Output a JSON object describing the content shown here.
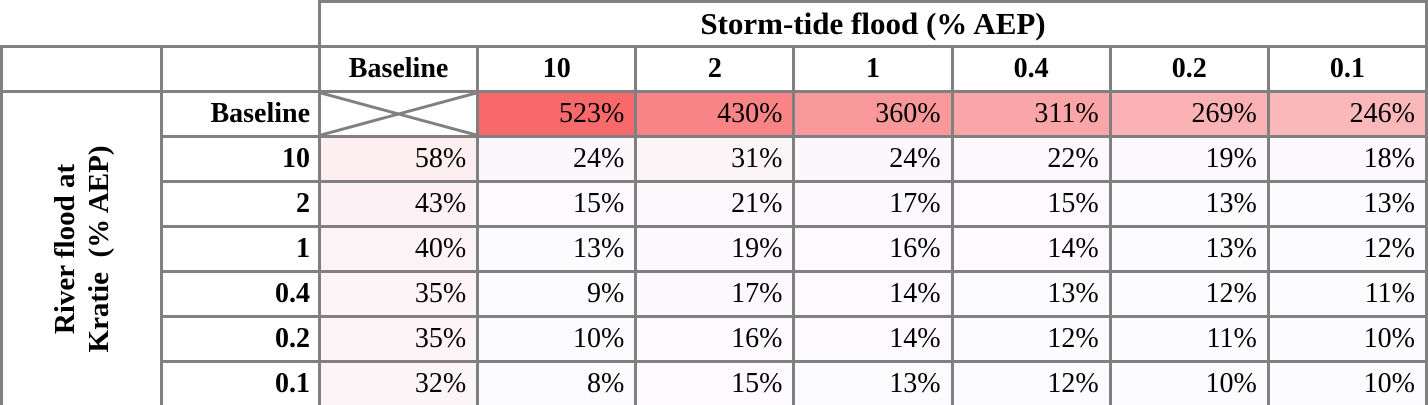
{
  "table": {
    "storm_tide_axis_title": "Storm-tide flood (% AEP)",
    "river_flood_axis_title": "River flood at\nKratie  (% AEP)"
  },
  "chart_data": {
    "type": "heatmap",
    "xlabel": "Storm-tide flood (% AEP)",
    "ylabel": "River flood at Kratie (% AEP)",
    "columns": [
      "Baseline",
      "10",
      "2",
      "1",
      "0.4",
      "0.2",
      "0.1"
    ],
    "rows": [
      "Baseline",
      "10",
      "2",
      "1",
      "0.4",
      "0.2",
      "0.1"
    ],
    "unit": "%",
    "values_percent": [
      [
        null,
        523,
        430,
        360,
        311,
        269,
        246
      ],
      [
        58,
        24,
        31,
        24,
        22,
        19,
        18
      ],
      [
        43,
        15,
        21,
        17,
        15,
        13,
        13
      ],
      [
        40,
        13,
        19,
        16,
        14,
        13,
        12
      ],
      [
        35,
        9,
        17,
        14,
        13,
        12,
        11
      ],
      [
        35,
        10,
        16,
        14,
        12,
        11,
        10
      ],
      [
        32,
        8,
        15,
        13,
        12,
        10,
        10
      ]
    ],
    "crossed_out_cell": {
      "row": "Baseline",
      "column": "Baseline"
    },
    "color_scale": {
      "type": "linear",
      "min_value": 8,
      "max_value": 523,
      "min_color": "#FCFCFF",
      "max_color": "#F8696B"
    },
    "colors": {
      "border": "#808080",
      "text": "#000000",
      "background": "#FFFFFF"
    }
  }
}
